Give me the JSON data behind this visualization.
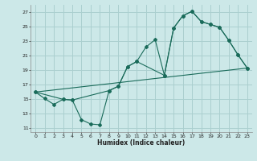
{
  "background_color": "#cce8e8",
  "grid_color": "#aacfcf",
  "line_color": "#1a6b5a",
  "xlabel": "Humidex (Indice chaleur)",
  "xlim": [
    -0.5,
    23.5
  ],
  "ylim": [
    10.5,
    28
  ],
  "yticks": [
    11,
    13,
    15,
    17,
    19,
    21,
    23,
    25,
    27
  ],
  "xticks": [
    0,
    1,
    2,
    3,
    4,
    5,
    6,
    7,
    8,
    9,
    10,
    11,
    12,
    13,
    14,
    15,
    16,
    17,
    18,
    19,
    20,
    21,
    22,
    23
  ],
  "line1_x": [
    0,
    1,
    2,
    3,
    4,
    5,
    6,
    7,
    8,
    9,
    10,
    11,
    12,
    13,
    14,
    15,
    16,
    17,
    18,
    19,
    20,
    21,
    22,
    23
  ],
  "line1_y": [
    16.0,
    15.1,
    14.3,
    15.0,
    14.9,
    12.2,
    11.6,
    11.5,
    16.2,
    16.8,
    19.5,
    20.2,
    22.2,
    23.2,
    18.3,
    24.8,
    26.5,
    27.1,
    25.7,
    25.3,
    24.9,
    23.1,
    21.1,
    19.3
  ],
  "line2_x": [
    0,
    3,
    4,
    8,
    9,
    10,
    11,
    14,
    15,
    16,
    17,
    18,
    19,
    20,
    21,
    22,
    23
  ],
  "line2_y": [
    16.0,
    15.0,
    14.9,
    16.2,
    16.8,
    19.5,
    20.2,
    18.3,
    24.8,
    26.5,
    27.1,
    25.7,
    25.3,
    24.9,
    23.1,
    21.1,
    19.3
  ],
  "line3_x": [
    0,
    23
  ],
  "line3_y": [
    16.0,
    19.3
  ]
}
